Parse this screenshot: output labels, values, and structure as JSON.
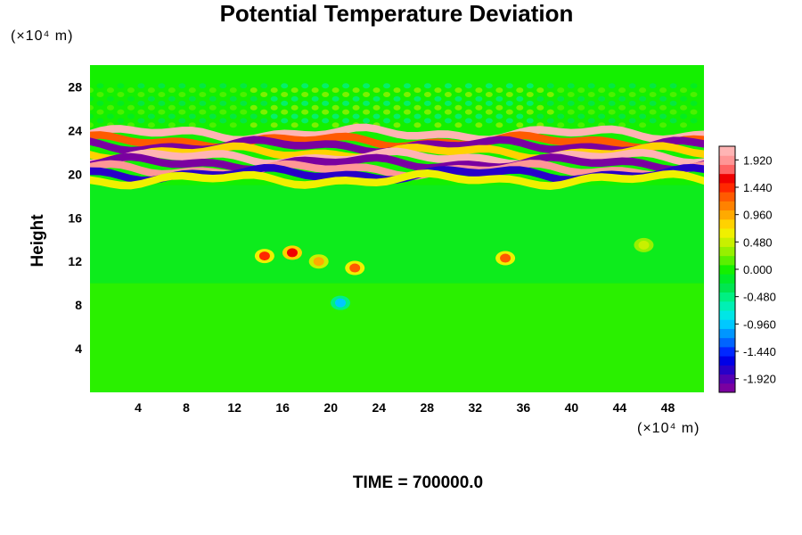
{
  "chart_data": {
    "type": "heatmap",
    "title": "Potential Temperature Deviation",
    "ylabel": "Height",
    "x_unit_label": "(×10⁴ m)",
    "y_unit_label": "(×10⁴ m)",
    "x_ticks": [
      4,
      8,
      12,
      16,
      20,
      24,
      28,
      32,
      36,
      40,
      44,
      48
    ],
    "y_ticks": [
      4,
      8,
      12,
      16,
      20,
      24,
      28
    ],
    "xlim": [
      0,
      51
    ],
    "ylim": [
      0,
      30
    ],
    "colorbar": {
      "labels": [
        "1.920",
        "1.440",
        "0.960",
        "0.480",
        "0.000",
        "-0.480",
        "-0.960",
        "-1.440",
        "-1.920"
      ],
      "values": [
        1.92,
        1.44,
        0.96,
        0.48,
        0.0,
        -0.48,
        -0.96,
        -1.44,
        -1.92
      ],
      "range": [
        -2.16,
        2.16
      ]
    },
    "features": {
      "background_value": 0.0,
      "upper_layer": {
        "bands": [
          {
            "y": 23.7,
            "value": 2.0
          },
          {
            "y": 23.0,
            "value": 1.3
          },
          {
            "y": 22.6,
            "value": -2.1
          },
          {
            "y": 22.0,
            "value": 0.8
          },
          {
            "y": 21.5,
            "value": 2.1
          },
          {
            "y": 21.0,
            "value": -2.1
          },
          {
            "y": 20.4,
            "value": 1.9
          },
          {
            "y": 20.0,
            "value": -1.8
          },
          {
            "y": 19.5,
            "value": 0.6
          }
        ]
      },
      "wave_region_y": [
        24.5,
        28.5
      ],
      "blobs": [
        {
          "x": 14.5,
          "y": 12.5,
          "value": 1.4
        },
        {
          "x": 16.8,
          "y": 12.8,
          "value": 1.6
        },
        {
          "x": 19.0,
          "y": 12.0,
          "value": 0.9
        },
        {
          "x": 22.0,
          "y": 11.4,
          "value": 1.2
        },
        {
          "x": 34.5,
          "y": 12.3,
          "value": 1.3
        },
        {
          "x": 20.8,
          "y": 8.2,
          "value": -1.0
        },
        {
          "x": 46.0,
          "y": 13.5,
          "value": 0.5
        }
      ]
    }
  },
  "footer": {
    "time_label": "TIME = 700000.0"
  }
}
